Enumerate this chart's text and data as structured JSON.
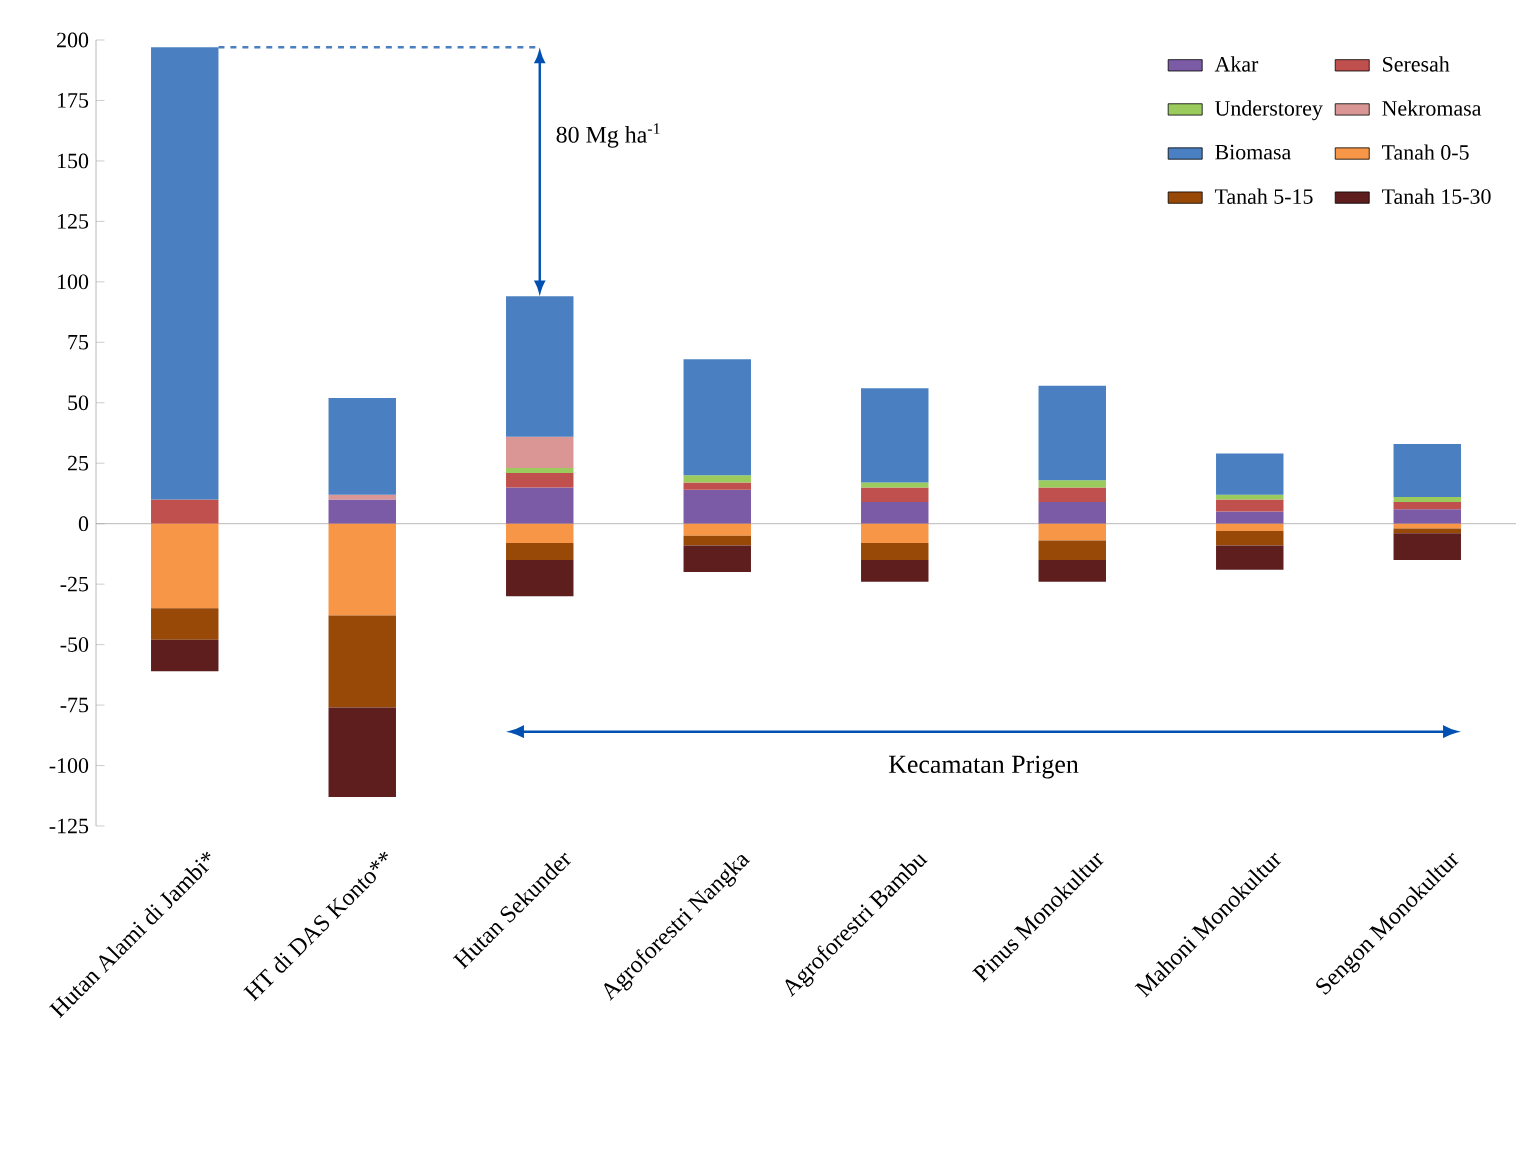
{
  "chart_data": {
    "type": "bar",
    "stacked": true,
    "categories": [
      "Hutan Alami di Jambi*",
      "HT di DAS Konto**",
      "Hutan Sekunder",
      "Agroforestri Nangka",
      "Agroforestri Bambu",
      "Pinus Monokultur",
      "Mahoni Monokultur",
      "Sengon Monokultur"
    ],
    "series": [
      {
        "name": "Akar",
        "color": "#7b5aa6",
        "values": [
          0,
          10,
          15,
          14,
          9,
          9,
          5,
          6
        ]
      },
      {
        "name": "Seresah",
        "color": "#c0504d",
        "values": [
          10,
          0,
          6,
          3,
          6,
          6,
          5,
          3
        ]
      },
      {
        "name": "Understorey",
        "color": "#9bcb5c",
        "values": [
          0,
          0,
          2,
          3,
          2,
          3,
          2,
          2
        ]
      },
      {
        "name": "Nekromasa",
        "color": "#d99694",
        "values": [
          0,
          2,
          13,
          0,
          0,
          0,
          0,
          0
        ]
      },
      {
        "name": "Biomasa",
        "color": "#4a7fc1",
        "values": [
          187,
          40,
          58,
          48,
          39,
          39,
          17,
          22
        ]
      },
      {
        "name": "Tanah 0-5",
        "color": "#f79646",
        "values": [
          -35,
          -38,
          -8,
          -5,
          -8,
          -7,
          -3,
          -2
        ]
      },
      {
        "name": "Tanah 5-15",
        "color": "#984807",
        "values": [
          -13,
          -38,
          -7,
          -4,
          -7,
          -8,
          -6,
          -2
        ]
      },
      {
        "name": "Tanah 15-30",
        "color": "#5f1e1e",
        "values": [
          -13,
          -37,
          -15,
          -11,
          -9,
          -9,
          -10,
          -11
        ]
      }
    ],
    "ylim": [
      -125,
      200
    ],
    "yticks": [
      -125,
      -100,
      -75,
      -50,
      -25,
      0,
      25,
      50,
      75,
      100,
      125,
      150,
      175,
      200
    ],
    "legend": "top right",
    "ref_lines": [
      {
        "axis": "y",
        "value": 197,
        "color": "#4a7fc1",
        "line_style": "dashed"
      }
    ],
    "annotations": [
      "80 Mg ha$^{-1}$",
      "Kecamatan Prigen"
    ]
  }
}
